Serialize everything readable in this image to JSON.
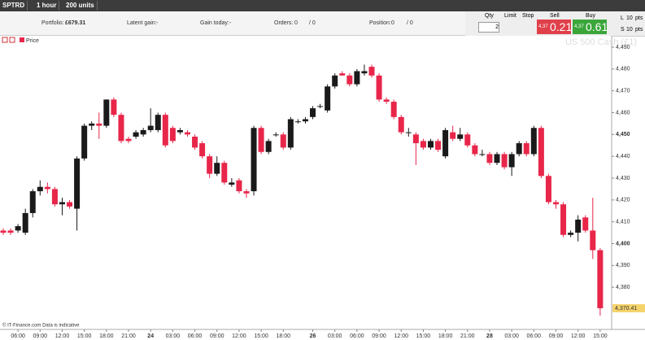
{
  "toolbar": {
    "instrument": "SPTRD",
    "interval": "1 hour",
    "units": "200 units"
  },
  "status": {
    "portfolio_label": "Portfolio:",
    "portfolio": "£679.31",
    "latent_label": "Latent gain:",
    "latent": "-",
    "today_label": "Gain today:",
    "today": "-",
    "orders_label": "Orders:",
    "orders": "0",
    "orders_total": "/ 0",
    "position_label": "Position:",
    "position": "0",
    "position_total": "/ 0"
  },
  "deal": {
    "qty_label": "Qty",
    "qty": "2",
    "limit": "Limit",
    "stop": "Stop",
    "sell_label": "Sell",
    "sell_big": "4,37",
    "sell_small": "0.21",
    "buy_label": "Buy",
    "buy_big": "4,37",
    "buy_small": "0.61",
    "l": "L",
    "l_val": "10",
    "l_unit": "pts",
    "s": "S",
    "s_val": "10",
    "s_unit": "pts"
  },
  "chart_data": {
    "type": "candlestick",
    "title": "US 500 Cash (£1)",
    "legend": "Price",
    "footer": "© IT-Finance.com  Data is indicative",
    "up_color": "#1a1a1a",
    "down_color": "#e8264a",
    "categories": [
      null,
      null,
      "06:00",
      null,
      null,
      "09:00",
      null,
      null,
      "12:00",
      null,
      null,
      "15:00",
      null,
      null,
      "18:00",
      null,
      null,
      "21:00",
      null,
      null,
      "24",
      null,
      null,
      "03:00",
      null,
      null,
      "06:00",
      null,
      null,
      "09:00",
      null,
      null,
      "12:00",
      null,
      null,
      "15:00",
      null,
      null,
      "18:00",
      null,
      null,
      null,
      "26",
      null,
      null,
      "03:00",
      null,
      null,
      "06:00",
      null,
      null,
      "09:00",
      null,
      null,
      "12:00",
      null,
      null,
      "15:00",
      null,
      null,
      "18:00",
      null,
      null,
      "21:00",
      null,
      null,
      "28",
      null,
      null,
      "03:00",
      null,
      null,
      "06:00",
      null,
      null,
      "09:00",
      null,
      null,
      "12:00",
      null,
      null,
      "15:00"
    ],
    "open": [
      4406,
      4406,
      4406,
      4405,
      4414,
      4424,
      4426,
      4425,
      4418,
      4419,
      4416,
      4439,
      4454,
      4455,
      4454,
      4466,
      4459,
      4448,
      4449,
      4450,
      4452,
      4452,
      4459,
      4453,
      4451,
      4451,
      4449,
      4446,
      4440,
      4432,
      4437,
      4427,
      4429,
      4424,
      4424,
      4453,
      4442,
      4450,
      4450,
      4444,
      4456,
      4456,
      4458,
      4463,
      4461,
      4472,
      4478,
      4477,
      4473,
      4478,
      4481,
      4477,
      4466,
      4465,
      4458,
      4451,
      4450,
      4447,
      4444,
      4447,
      4440,
      4451,
      4448,
      4450,
      4445,
      4441,
      4441,
      4437,
      4441,
      4435,
      4441,
      4446,
      4441,
      4453,
      4431,
      4419,
      4418,
      4404,
      4405,
      4412,
      4406,
      4397
    ],
    "high": [
      4407,
      4407,
      4409,
      4416,
      4425,
      4429,
      4428,
      4426,
      4421,
      4420,
      4440,
      4455,
      4456,
      4460,
      4466,
      4467,
      4460,
      4449,
      4452,
      4453,
      4462,
      4460,
      4460,
      4454,
      4453,
      4452,
      4450,
      4447,
      4441,
      4440,
      4438,
      4430,
      4430,
      4425,
      4454,
      4454,
      4448,
      4451,
      4451,
      4458,
      4457,
      4458,
      4463,
      4464,
      4473,
      4478,
      4479,
      4478,
      4480,
      4482,
      4482,
      4478,
      4467,
      4466,
      4459,
      4453,
      4451,
      4448,
      4448,
      4448,
      4453,
      4454,
      4453,
      4451,
      4446,
      4443,
      4442,
      4442,
      4442,
      4442,
      4447,
      4447,
      4454,
      4454,
      4432,
      4420,
      4419,
      4406,
      4413,
      4413,
      4421,
      4398
    ],
    "low": [
      4404,
      4404,
      4405,
      4404,
      4412,
      4422,
      4423,
      4417,
      4413,
      4416,
      4406,
      4438,
      4452,
      4448,
      4453,
      4458,
      4446,
      4446,
      4448,
      4449,
      4451,
      4451,
      4444,
      4446,
      4450,
      4449,
      4443,
      4439,
      4430,
      4431,
      4427,
      4426,
      4423,
      4421,
      4422,
      4441,
      4441,
      4449,
      4443,
      4443,
      4455,
      4455,
      4457,
      4462,
      4460,
      4471,
      4477,
      4472,
      4472,
      4477,
      4476,
      4465,
      4464,
      4457,
      4450,
      4449,
      4436,
      4443,
      4443,
      4442,
      4439,
      4447,
      4447,
      4444,
      4440,
      4440,
      4436,
      4436,
      4434,
      4431,
      4440,
      4440,
      4440,
      4430,
      4418,
      4416,
      4403,
      4403,
      4401,
      4405,
      4393,
      4367
    ],
    "close": [
      4405,
      4405,
      4408,
      4414,
      4424,
      4426,
      4425,
      4418,
      4419,
      4417,
      4439,
      4454,
      4455,
      4454,
      4466,
      4459,
      4447,
      4447,
      4451,
      4452,
      4454,
      4459,
      4445,
      4447,
      4452,
      4450,
      4444,
      4440,
      4432,
      4437,
      4428,
      4428,
      4424,
      4423,
      4453,
      4442,
      4447,
      4450,
      4444,
      4457,
      4456,
      4457,
      4462,
      4463,
      4472,
      4477,
      4477,
      4473,
      4479,
      4479,
      4477,
      4466,
      4465,
      4458,
      4451,
      4451,
      4446,
      4444,
      4447,
      4443,
      4452,
      4448,
      4450,
      4445,
      4441,
      4441,
      4437,
      4441,
      4435,
      4441,
      4446,
      4441,
      4453,
      4431,
      4419,
      4418,
      4404,
      4405,
      4411,
      4406,
      4397,
      4370.41
    ],
    "last_price": {
      "value": 4370.41,
      "label": "4,370.41"
    },
    "ylim": [
      4360.7,
      4495.2
    ],
    "yticks": [
      {
        "value": 4380,
        "label": "4,380"
      },
      {
        "value": 4390,
        "label": "4,390"
      },
      {
        "value": 4400,
        "label": "4,400"
      },
      {
        "value": 4410,
        "label": "4,410"
      },
      {
        "value": 4420,
        "label": "4,420"
      },
      {
        "value": 4430,
        "label": "4,430"
      },
      {
        "value": 4440,
        "label": "4,440"
      },
      {
        "value": 4450,
        "label": "4,450"
      },
      {
        "value": 4460,
        "label": "4,460"
      },
      {
        "value": 4470,
        "label": "4,470"
      },
      {
        "value": 4480,
        "label": "4,480"
      },
      {
        "value": 4490,
        "label": "4,490"
      }
    ],
    "bold_ticks": [
      4400,
      4450
    ]
  }
}
